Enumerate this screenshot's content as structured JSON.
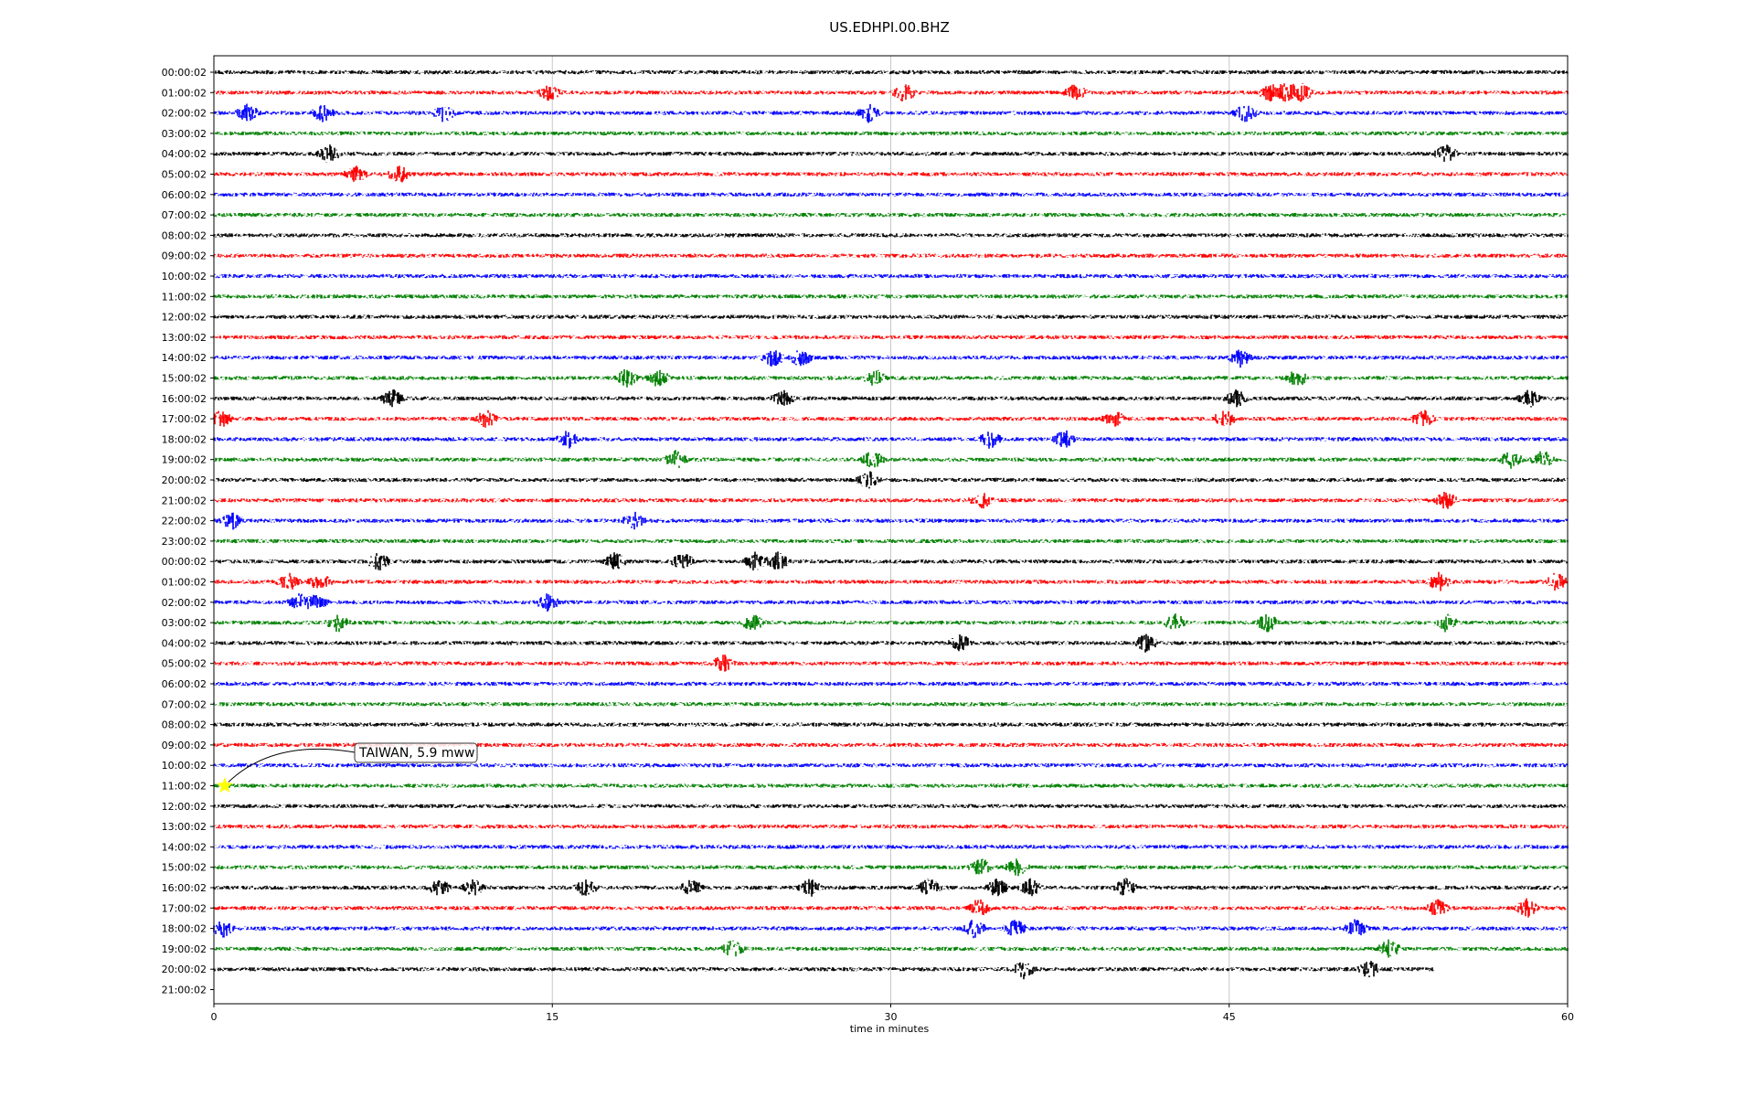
{
  "chart_data": {
    "type": "line",
    "title": "US.EDHPI.00.BHZ",
    "xlabel": "time in minutes",
    "ylabel": "",
    "xlim": [
      0,
      60
    ],
    "xticks": [
      "0",
      "15",
      "30",
      "45",
      "60"
    ],
    "grid": "vertical lines at 15, 30 and 45 minutes",
    "row_labels": [
      "00:00:02",
      "01:00:02",
      "02:00:02",
      "03:00:02",
      "04:00:02",
      "05:00:02",
      "06:00:02",
      "07:00:02",
      "08:00:02",
      "09:00:02",
      "10:00:02",
      "11:00:02",
      "12:00:02",
      "13:00:02",
      "14:00:02",
      "15:00:02",
      "16:00:02",
      "17:00:02",
      "18:00:02",
      "19:00:02",
      "20:00:02",
      "21:00:02",
      "22:00:02",
      "23:00:02",
      "00:00:02",
      "01:00:02",
      "02:00:02",
      "03:00:02",
      "04:00:02",
      "05:00:02",
      "06:00:02",
      "07:00:02",
      "08:00:02",
      "09:00:02",
      "10:00:02",
      "11:00:02",
      "12:00:02",
      "13:00:02",
      "14:00:02",
      "15:00:02",
      "16:00:02",
      "17:00:02",
      "18:00:02",
      "19:00:02",
      "20:00:02",
      "21:00:02"
    ],
    "trace_colors": [
      "#000000",
      "#ff0000",
      "#0000ff",
      "#008000"
    ],
    "last_trace_end_minute": 54.1,
    "events": [
      {
        "row": 1,
        "minutes": [
          14.9,
          30.6,
          38.2,
          46.8,
          47.5,
          48.2
        ]
      },
      {
        "row": 2,
        "minutes": [
          1.5,
          4.8,
          10.2,
          29.0,
          45.7
        ]
      },
      {
        "row": 4,
        "minutes": [
          5.1,
          54.6
        ]
      },
      {
        "row": 5,
        "minutes": [
          6.3,
          8.2
        ]
      },
      {
        "row": 14,
        "minutes": [
          24.8,
          26.0,
          45.5
        ]
      },
      {
        "row": 15,
        "minutes": [
          18.3,
          19.7,
          29.3,
          48.0
        ]
      },
      {
        "row": 16,
        "minutes": [
          7.9,
          25.2,
          45.3,
          58.3
        ]
      },
      {
        "row": 17,
        "minutes": [
          0.3,
          12.1,
          39.9,
          44.8,
          53.6
        ]
      },
      {
        "row": 18,
        "minutes": [
          15.7,
          34.4,
          37.7
        ]
      },
      {
        "row": 19,
        "minutes": [
          20.5,
          29.2,
          57.5,
          58.9
        ]
      },
      {
        "row": 20,
        "minutes": [
          29.0
        ]
      },
      {
        "row": 21,
        "minutes": [
          34.0,
          54.6
        ]
      },
      {
        "row": 22,
        "minutes": [
          0.8,
          18.6
        ]
      },
      {
        "row": 24,
        "minutes": [
          7.3,
          17.8,
          20.8,
          24.0,
          25.0
        ]
      },
      {
        "row": 25,
        "minutes": [
          3.3,
          4.7,
          54.3,
          59.5
        ]
      },
      {
        "row": 26,
        "minutes": [
          3.8,
          4.6,
          14.8
        ]
      },
      {
        "row": 27,
        "minutes": [
          5.5,
          23.9,
          42.6,
          46.7,
          54.6
        ]
      },
      {
        "row": 28,
        "minutes": [
          33.1,
          41.3
        ]
      },
      {
        "row": 29,
        "minutes": [
          22.6
        ]
      },
      {
        "row": 39,
        "minutes": [
          34.0,
          35.6
        ]
      },
      {
        "row": 40,
        "minutes": [
          10.0,
          11.5,
          16.5,
          21.2,
          26.4,
          31.7,
          34.7,
          36.2,
          40.4
        ]
      },
      {
        "row": 41,
        "minutes": [
          33.9,
          54.2,
          58.2
        ]
      },
      {
        "row": 42,
        "minutes": [
          0.4,
          33.7,
          35.5,
          50.6
        ]
      },
      {
        "row": 43,
        "minutes": [
          23.0,
          52.1
        ]
      },
      {
        "row": 44,
        "minutes": [
          35.9,
          51.2
        ]
      }
    ],
    "annotation": {
      "text": "TAIWAN, 5.9 mww",
      "row": 35,
      "minute": 0.4,
      "marker": "star",
      "marker_color": "#ffff00"
    }
  }
}
